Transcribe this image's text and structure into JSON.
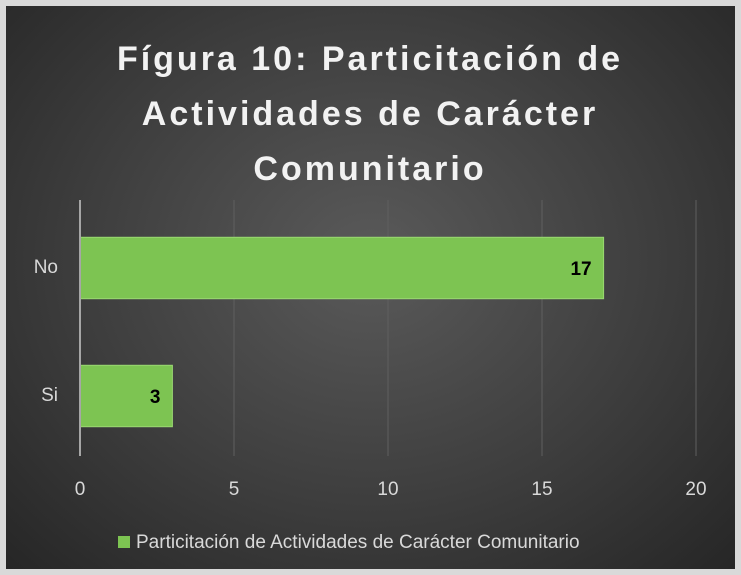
{
  "chart_data": {
    "type": "bar",
    "orientation": "horizontal",
    "title": "Fígura 10: Particitación de Actividades de Carácter Comunitario",
    "categories": [
      "No",
      "Si"
    ],
    "series": [
      {
        "name": "Particitación de Actividades de Carácter Comunitario",
        "color": "#7dc452",
        "values": [
          17,
          3
        ]
      }
    ],
    "xlim": [
      0,
      20
    ],
    "xticks": [
      0,
      5,
      10,
      15,
      20
    ],
    "grid": true,
    "legend": "bottom"
  }
}
